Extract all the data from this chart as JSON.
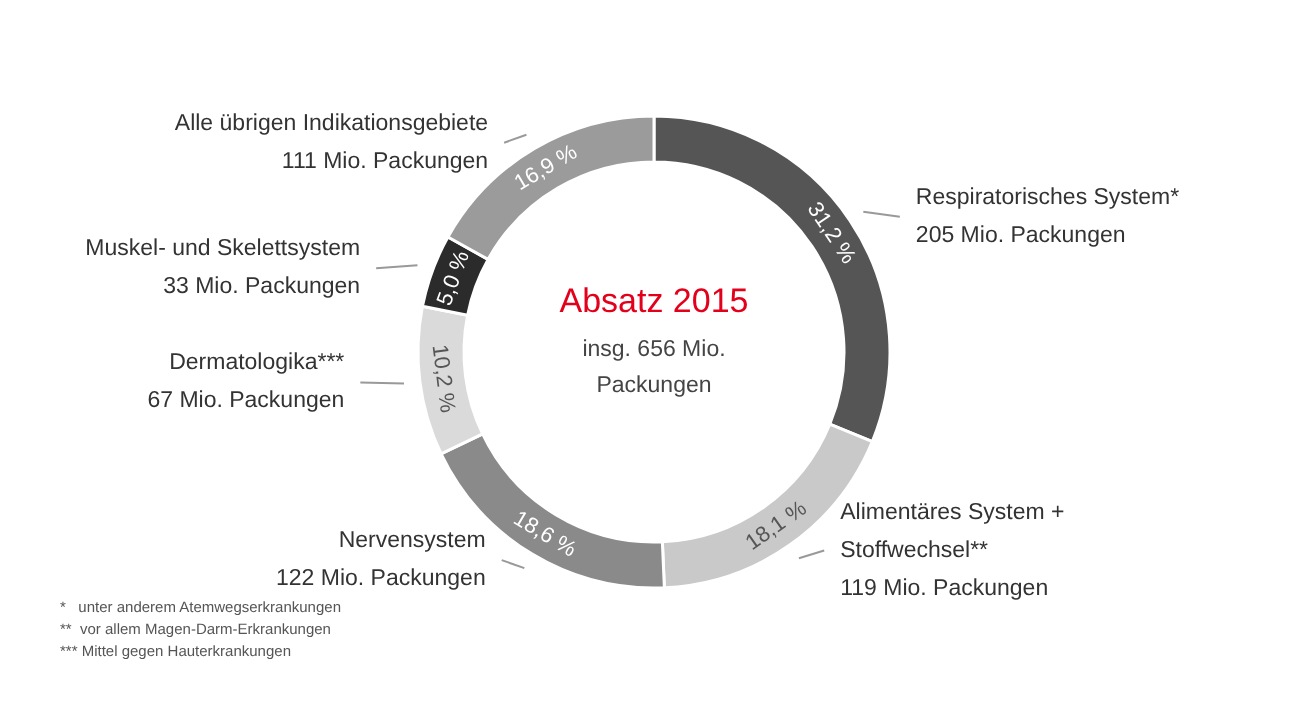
{
  "chart_data": {
    "type": "donut",
    "title": "Absatz 2015",
    "subtitle": "insg. 656 Mio.\nPackungen",
    "categories": [
      "Respiratorisches System*\n205 Mio. Packungen",
      "Alimentäres System +\nStoffwechsel**\n119 Mio. Packungen",
      "Nervensystem\n122 Mio. Packungen",
      "Dermatologika***\n67 Mio. Packungen",
      "Muskel- und Skelettsystem\n33 Mio. Packungen",
      "Alle übrigen Indikationsgebiete\n111 Mio. Packungen"
    ],
    "values": [
      31.2,
      18.1,
      18.6,
      10.2,
      5.0,
      16.9
    ],
    "value_labels": [
      "31,2 %",
      "18,1 %",
      "18,6 %",
      "10,2 %",
      "5,0 %",
      "16,9 %"
    ],
    "colors": [
      "#555555",
      "#c9c9c9",
      "#8a8a8a",
      "#dadada",
      "#2b2b2b",
      "#9b9b9b"
    ],
    "legend": false,
    "annotations": [
      "*   unter anderem Atemwegserkrankungen",
      "**  vor allem Magen-Darm-Erkrankungen",
      "*** Mittel gegen Hauterkrankungen"
    ]
  }
}
